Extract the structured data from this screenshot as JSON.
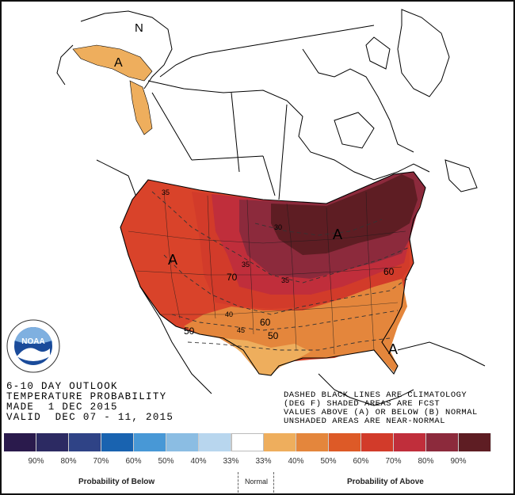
{
  "product": {
    "line1": "6-10 DAY OUTLOOK",
    "line2": "TEMPERATURE PROBABILITY",
    "line3": "MADE  1 DEC 2015",
    "line4": "VALID  DEC 07 - 11, 2015"
  },
  "notes": {
    "line1": "DASHED BLACK LINES ARE CLIMATOLOGY",
    "line2": "(DEG F) SHADED AREAS ARE FCST",
    "line3": "VALUES ABOVE (A) OR BELOW (B) NORMAL",
    "line4": "UNSHADED AREAS ARE NEAR-NORMAL"
  },
  "map_labels": {
    "north": "N",
    "above": "A",
    "prob_70": "70",
    "prob_60_east": "60",
    "prob_60_south": "60",
    "prob_50_south": "50",
    "prob_50_west": "50",
    "clim_35_nw": "35",
    "clim_35_central": "35",
    "clim_35_east": "35",
    "clim_40": "40",
    "clim_45": "45",
    "clim_30": "30"
  },
  "logo": {
    "name": "NOAA"
  },
  "legend": {
    "colors": [
      "#2a1a4c",
      "#2c2a62",
      "#2f4386",
      "#1963b0",
      "#4898d6",
      "#8bbde3",
      "#b8d6ee",
      "#ffffff",
      "#eeae5d",
      "#e4863c",
      "#dd5a27",
      "#d23b2a",
      "#c02e3b",
      "#8c2a3c",
      "#5e1d23"
    ],
    "labels": [
      "90%",
      "80%",
      "70%",
      "60%",
      "50%",
      "40%",
      "33%",
      "33%",
      "40%",
      "50%",
      "60%",
      "70%",
      "80%",
      "90%"
    ],
    "below_caption": "Probability of Below",
    "normal_caption": "Normal",
    "above_caption": "Probability of Above"
  }
}
